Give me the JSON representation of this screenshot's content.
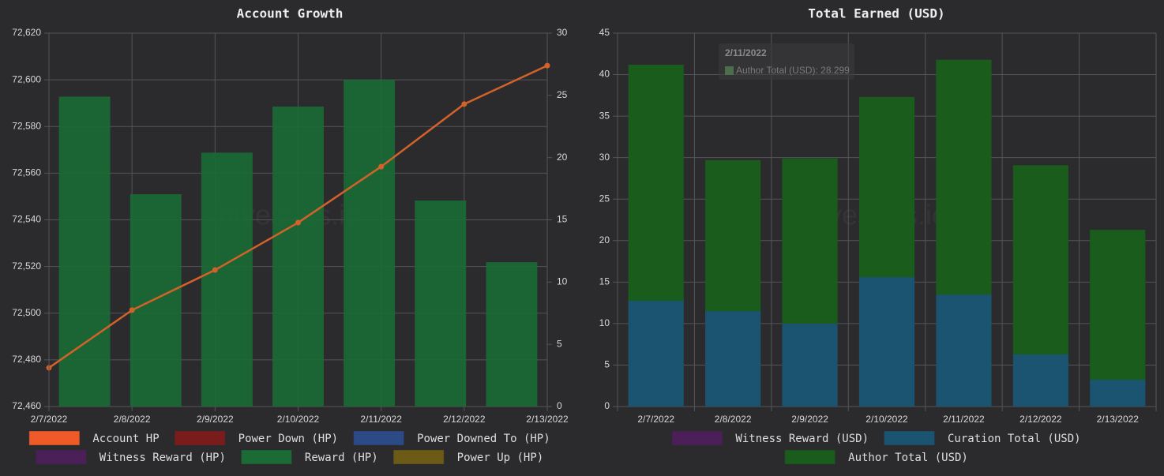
{
  "chart_data": [
    {
      "type": "combo",
      "title": "Account Growth",
      "watermark": "hivestats.io",
      "categories": [
        "2/7/2022",
        "2/8/2022",
        "2/9/2022",
        "2/10/2022",
        "2/11/2022",
        "2/12/2022",
        "2/13/2022"
      ],
      "ylim": [
        72460,
        72620
      ],
      "yticks": [
        {
          "value": 72460,
          "label": "72,460"
        },
        {
          "value": 72480,
          "label": "72,480"
        },
        {
          "value": 72500,
          "label": "72,500"
        },
        {
          "value": 72520,
          "label": "72,520"
        },
        {
          "value": 72540,
          "label": "72,540"
        },
        {
          "value": 72560,
          "label": "72,560"
        },
        {
          "value": 72580,
          "label": "72,580"
        },
        {
          "value": 72600,
          "label": "72,600"
        },
        {
          "value": 72620,
          "label": "72,620"
        }
      ],
      "y2lim": [
        0,
        30
      ],
      "y2ticks": [
        0,
        5,
        10,
        15,
        20,
        25,
        30
      ],
      "grid": true,
      "series": [
        {
          "name": "Account HP",
          "type": "line",
          "color": "#f05a28",
          "line_color": "#d2622a",
          "values": [
            72476.6,
            72501.3,
            72518.5,
            72538.8,
            72562.8,
            72589.6,
            72606.1
          ]
        },
        {
          "name": "Power Down (HP)",
          "type": "bar",
          "axis": "y2",
          "color": "#7a1c1c",
          "values": [
            null,
            null,
            null,
            null,
            null,
            null,
            null
          ]
        },
        {
          "name": "Power Downed To (HP)",
          "type": "bar",
          "axis": "y2",
          "color": "#2b4a86",
          "values": [
            null,
            null,
            null,
            null,
            null,
            null,
            null
          ]
        },
        {
          "name": "Witness Reward (HP)",
          "type": "bar",
          "axis": "y2",
          "color": "#4b1f57",
          "values": [
            null,
            null,
            null,
            null,
            null,
            null,
            null
          ]
        },
        {
          "name": "Reward (HP)",
          "type": "bar",
          "axis": "y2",
          "color": "#1a6b35",
          "values": [
            24.9,
            17.06,
            20.4,
            24.1,
            26.25,
            16.55,
            11.6
          ]
        },
        {
          "name": "Power Up (HP)",
          "type": "bar",
          "axis": "y2",
          "color": "#6b5b16",
          "values": [
            null,
            null,
            null,
            null,
            null,
            null,
            null
          ]
        }
      ]
    },
    {
      "type": "stacked_bar",
      "title": "Total Earned (USD)",
      "watermark": "hivestats.io",
      "categories": [
        "2/7/2022",
        "2/8/2022",
        "2/9/2022",
        "2/10/2022",
        "2/11/2022",
        "2/12/2022",
        "2/13/2022"
      ],
      "ylim": [
        0,
        45
      ],
      "yticks": [
        0,
        5,
        10,
        15,
        20,
        25,
        30,
        35,
        40,
        45
      ],
      "grid": true,
      "series": [
        {
          "name": "Witness Reward (USD)",
          "color": "#4b1f57",
          "values": [
            null,
            null,
            null,
            null,
            null,
            null,
            null
          ]
        },
        {
          "name": "Curation Total (USD)",
          "color": "#1b5470",
          "values": [
            12.75,
            11.5,
            10.0,
            15.6,
            13.5,
            6.28,
            3.23
          ]
        },
        {
          "name": "Author Total (USD)",
          "color": "#195c1c",
          "values": [
            28.45,
            18.2,
            19.9,
            21.7,
            28.299,
            22.8,
            18.07
          ]
        }
      ],
      "tooltip": {
        "title": "2/11/2022",
        "label": "Author Total (USD): 28.299"
      }
    }
  ]
}
